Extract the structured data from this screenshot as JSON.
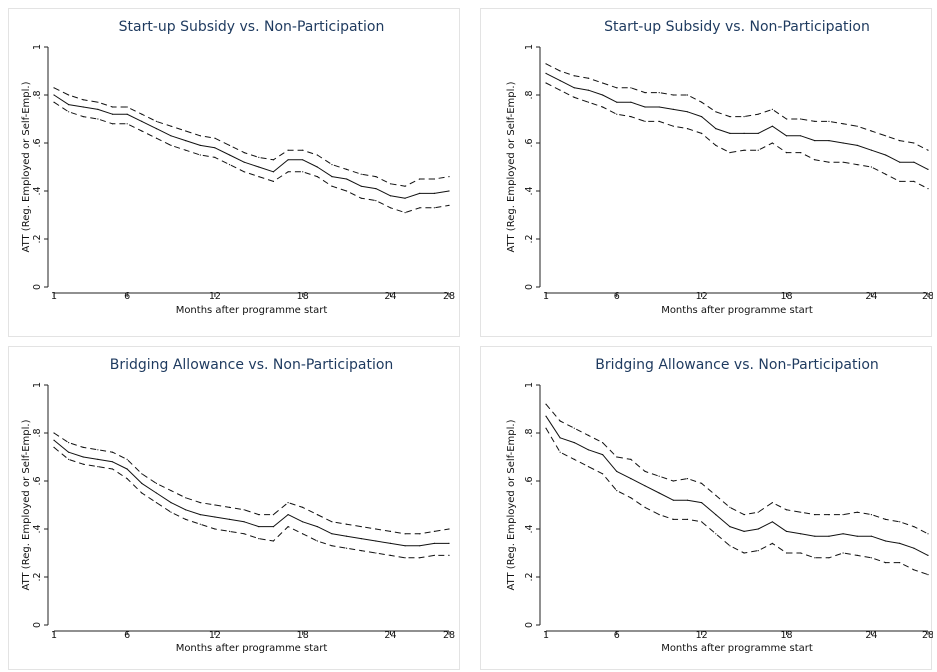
{
  "chart_data": [
    {
      "type": "line",
      "title": "Start-up Subsidy vs. Non-Participation",
      "xlabel": "Months after programme start",
      "ylabel": "ATT (Reg. Employed or Self-Empl.)",
      "ylim": [
        0,
        1
      ],
      "xlim": [
        1,
        28
      ],
      "yticks": [
        0,
        0.2,
        0.4,
        0.6,
        0.8,
        1
      ],
      "ytick_labels": [
        "0",
        ".2",
        ".4",
        ".6",
        ".8",
        "1"
      ],
      "xticks": [
        1,
        6,
        12,
        18,
        24,
        28
      ],
      "xtick_labels": [
        "1",
        "6",
        "12",
        "18",
        "24",
        "28"
      ],
      "x": [
        1,
        2,
        3,
        4,
        5,
        6,
        7,
        8,
        9,
        10,
        11,
        12,
        13,
        14,
        15,
        16,
        17,
        18,
        19,
        20,
        21,
        22,
        23,
        24,
        25,
        26,
        27,
        28
      ],
      "series": [
        {
          "values": [
            0.8,
            0.76,
            0.75,
            0.74,
            0.72,
            0.72,
            0.69,
            0.66,
            0.63,
            0.61,
            0.59,
            0.58,
            0.55,
            0.52,
            0.5,
            0.48,
            0.53,
            0.53,
            0.5,
            0.46,
            0.45,
            0.42,
            0.41,
            0.38,
            0.37,
            0.39,
            0.39,
            0.4
          ],
          "style": "solid"
        },
        {
          "values": [
            0.83,
            0.8,
            0.78,
            0.77,
            0.75,
            0.75,
            0.72,
            0.69,
            0.67,
            0.65,
            0.63,
            0.62,
            0.59,
            0.56,
            0.54,
            0.53,
            0.57,
            0.57,
            0.55,
            0.51,
            0.49,
            0.47,
            0.46,
            0.43,
            0.42,
            0.45,
            0.45,
            0.46
          ],
          "style": "dashed"
        },
        {
          "values": [
            0.77,
            0.73,
            0.71,
            0.7,
            0.68,
            0.68,
            0.65,
            0.62,
            0.59,
            0.57,
            0.55,
            0.54,
            0.51,
            0.48,
            0.46,
            0.44,
            0.48,
            0.48,
            0.46,
            0.42,
            0.4,
            0.37,
            0.36,
            0.33,
            0.31,
            0.33,
            0.33,
            0.34
          ],
          "style": "dashed"
        }
      ]
    },
    {
      "type": "line",
      "title": "Start-up Subsidy vs. Non-Participation",
      "xlabel": "Months after programme start",
      "ylabel": "ATT (Reg. Employed or Self-Empl.)",
      "ylim": [
        0,
        1
      ],
      "xlim": [
        1,
        28
      ],
      "yticks": [
        0,
        0.2,
        0.4,
        0.6,
        0.8,
        1
      ],
      "ytick_labels": [
        "0",
        ".2",
        ".4",
        ".6",
        ".8",
        "1"
      ],
      "xticks": [
        1,
        6,
        12,
        18,
        24,
        28
      ],
      "xtick_labels": [
        "1",
        "6",
        "12",
        "18",
        "24",
        "28"
      ],
      "x": [
        1,
        2,
        3,
        4,
        5,
        6,
        7,
        8,
        9,
        10,
        11,
        12,
        13,
        14,
        15,
        16,
        17,
        18,
        19,
        20,
        21,
        22,
        23,
        24,
        25,
        26,
        27,
        28
      ],
      "series": [
        {
          "values": [
            0.89,
            0.86,
            0.83,
            0.82,
            0.8,
            0.77,
            0.77,
            0.75,
            0.75,
            0.74,
            0.73,
            0.71,
            0.66,
            0.64,
            0.64,
            0.64,
            0.67,
            0.63,
            0.63,
            0.61,
            0.61,
            0.6,
            0.59,
            0.57,
            0.55,
            0.52,
            0.52,
            0.49
          ],
          "style": "solid"
        },
        {
          "values": [
            0.93,
            0.9,
            0.88,
            0.87,
            0.85,
            0.83,
            0.83,
            0.81,
            0.81,
            0.8,
            0.8,
            0.77,
            0.73,
            0.71,
            0.71,
            0.72,
            0.74,
            0.7,
            0.7,
            0.69,
            0.69,
            0.68,
            0.67,
            0.65,
            0.63,
            0.61,
            0.6,
            0.57
          ],
          "style": "dashed"
        },
        {
          "values": [
            0.85,
            0.82,
            0.79,
            0.77,
            0.75,
            0.72,
            0.71,
            0.69,
            0.69,
            0.67,
            0.66,
            0.64,
            0.59,
            0.56,
            0.57,
            0.57,
            0.6,
            0.56,
            0.56,
            0.53,
            0.52,
            0.52,
            0.51,
            0.5,
            0.47,
            0.44,
            0.44,
            0.41
          ],
          "style": "dashed"
        }
      ]
    },
    {
      "type": "line",
      "title": "Bridging Allowance vs. Non-Participation",
      "xlabel": "Months after programme start",
      "ylabel": "ATT (Reg. Employed or Self-Empl.)",
      "ylim": [
        0,
        1
      ],
      "xlim": [
        1,
        28
      ],
      "yticks": [
        0,
        0.2,
        0.4,
        0.6,
        0.8,
        1
      ],
      "ytick_labels": [
        "0",
        ".2",
        ".4",
        ".6",
        ".8",
        "1"
      ],
      "xticks": [
        1,
        6,
        12,
        18,
        24,
        28
      ],
      "xtick_labels": [
        "1",
        "6",
        "12",
        "18",
        "24",
        "28"
      ],
      "x": [
        1,
        2,
        3,
        4,
        5,
        6,
        7,
        8,
        9,
        10,
        11,
        12,
        13,
        14,
        15,
        16,
        17,
        18,
        19,
        20,
        21,
        22,
        23,
        24,
        25,
        26,
        27,
        28
      ],
      "series": [
        {
          "values": [
            0.77,
            0.72,
            0.7,
            0.69,
            0.68,
            0.65,
            0.59,
            0.55,
            0.51,
            0.48,
            0.46,
            0.45,
            0.44,
            0.43,
            0.41,
            0.41,
            0.46,
            0.43,
            0.41,
            0.38,
            0.37,
            0.36,
            0.35,
            0.34,
            0.33,
            0.33,
            0.34,
            0.34
          ],
          "style": "solid"
        },
        {
          "values": [
            0.8,
            0.76,
            0.74,
            0.73,
            0.72,
            0.69,
            0.63,
            0.59,
            0.56,
            0.53,
            0.51,
            0.5,
            0.49,
            0.48,
            0.46,
            0.46,
            0.51,
            0.49,
            0.46,
            0.43,
            0.42,
            0.41,
            0.4,
            0.39,
            0.38,
            0.38,
            0.39,
            0.4
          ],
          "style": "dashed"
        },
        {
          "values": [
            0.74,
            0.69,
            0.67,
            0.66,
            0.65,
            0.61,
            0.55,
            0.51,
            0.47,
            0.44,
            0.42,
            0.4,
            0.39,
            0.38,
            0.36,
            0.35,
            0.41,
            0.38,
            0.35,
            0.33,
            0.32,
            0.31,
            0.3,
            0.29,
            0.28,
            0.28,
            0.29,
            0.29
          ],
          "style": "dashed"
        }
      ]
    },
    {
      "type": "line",
      "title": "Bridging Allowance vs. Non-Participation",
      "xlabel": "Months after programme start",
      "ylabel": "ATT (Reg. Employed or Self-Empl.)",
      "ylim": [
        0,
        1
      ],
      "xlim": [
        1,
        28
      ],
      "yticks": [
        0,
        0.2,
        0.4,
        0.6,
        0.8,
        1
      ],
      "ytick_labels": [
        "0",
        ".2",
        ".4",
        ".6",
        ".8",
        "1"
      ],
      "xticks": [
        1,
        6,
        12,
        18,
        24,
        28
      ],
      "xtick_labels": [
        "1",
        "6",
        "12",
        "18",
        "24",
        "28"
      ],
      "x": [
        1,
        2,
        3,
        4,
        5,
        6,
        7,
        8,
        9,
        10,
        11,
        12,
        13,
        14,
        15,
        16,
        17,
        18,
        19,
        20,
        21,
        22,
        23,
        24,
        25,
        26,
        27,
        28
      ],
      "series": [
        {
          "values": [
            0.87,
            0.78,
            0.76,
            0.73,
            0.71,
            0.64,
            0.61,
            0.58,
            0.55,
            0.52,
            0.52,
            0.51,
            0.46,
            0.41,
            0.39,
            0.4,
            0.43,
            0.39,
            0.38,
            0.37,
            0.37,
            0.38,
            0.37,
            0.37,
            0.35,
            0.34,
            0.32,
            0.29
          ],
          "style": "solid"
        },
        {
          "values": [
            0.92,
            0.85,
            0.82,
            0.79,
            0.76,
            0.7,
            0.69,
            0.64,
            0.62,
            0.6,
            0.61,
            0.59,
            0.54,
            0.49,
            0.46,
            0.47,
            0.51,
            0.48,
            0.47,
            0.46,
            0.46,
            0.46,
            0.47,
            0.46,
            0.44,
            0.43,
            0.41,
            0.38
          ],
          "style": "dashed"
        },
        {
          "values": [
            0.82,
            0.72,
            0.69,
            0.66,
            0.63,
            0.56,
            0.53,
            0.49,
            0.46,
            0.44,
            0.44,
            0.43,
            0.38,
            0.33,
            0.3,
            0.31,
            0.34,
            0.3,
            0.3,
            0.28,
            0.28,
            0.3,
            0.29,
            0.28,
            0.26,
            0.26,
            0.23,
            0.21
          ],
          "style": "dashed"
        }
      ]
    }
  ]
}
